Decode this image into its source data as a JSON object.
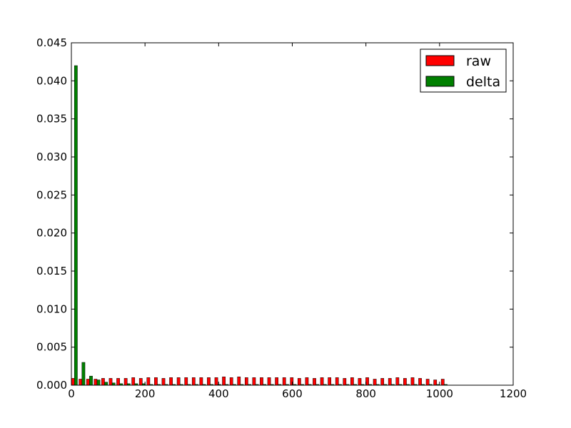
{
  "chart_data": {
    "type": "bar",
    "xlim": [
      0,
      1200
    ],
    "ylim": [
      0,
      0.045
    ],
    "bin_width": 20.5,
    "x_ticks": [
      "0",
      "200",
      "400",
      "600",
      "800",
      "1000",
      "1200"
    ],
    "y_ticks": [
      "0.000",
      "0.005",
      "0.010",
      "0.015",
      "0.020",
      "0.025",
      "0.030",
      "0.035",
      "0.040",
      "0.045"
    ],
    "legend_position": "top-right",
    "grid": false,
    "series": [
      {
        "name": "raw",
        "color": "#ff0000",
        "x": [
          0,
          20.5,
          41,
          61.5,
          82,
          102.5,
          123,
          143.5,
          164,
          184.5,
          205,
          225.5,
          246,
          266.5,
          287,
          307.5,
          328,
          348.5,
          369,
          389.5,
          410,
          430.5,
          451,
          471.5,
          492,
          512.5,
          533,
          553.5,
          574,
          594.5,
          615,
          635.5,
          656,
          676.5,
          697,
          717.5,
          738,
          758.5,
          779,
          799.5,
          820,
          840.5,
          861,
          881.5,
          902,
          922.5,
          943,
          963.5,
          984,
          1004.5
        ],
        "values": [
          0.0009,
          0.0008,
          0.0008,
          0.0008,
          0.0009,
          0.0009,
          0.0009,
          0.0009,
          0.001,
          0.0009,
          0.001,
          0.001,
          0.0009,
          0.001,
          0.001,
          0.001,
          0.001,
          0.001,
          0.001,
          0.001,
          0.0011,
          0.001,
          0.0011,
          0.001,
          0.001,
          0.001,
          0.001,
          0.001,
          0.001,
          0.001,
          0.0009,
          0.001,
          0.0009,
          0.001,
          0.001,
          0.001,
          0.0009,
          0.001,
          0.0009,
          0.001,
          0.0008,
          0.0009,
          0.0009,
          0.001,
          0.0009,
          0.001,
          0.0009,
          0.0008,
          0.0007,
          0.0008
        ]
      },
      {
        "name": "delta",
        "color": "#008000",
        "x": [
          0,
          20.5,
          41,
          61.5,
          82,
          102.5,
          123,
          143.5,
          164,
          184.5,
          205,
          225.5,
          246,
          266.5,
          287,
          307.5,
          328,
          348.5,
          369,
          389.5,
          410,
          430.5,
          451,
          471.5,
          492,
          512.5,
          533,
          553.5,
          574,
          594.5,
          615,
          635.5,
          656,
          676.5,
          697,
          717.5,
          738,
          758.5,
          779,
          799.5,
          820,
          840.5,
          861,
          881.5,
          902,
          922.5,
          943,
          963.5,
          984,
          1004.5
        ],
        "values": [
          0.042,
          0.003,
          0.0012,
          0.0007,
          0.0004,
          0.0003,
          0.0002,
          0.0002,
          0.0002,
          0.0002,
          0.0001,
          0.0001,
          0.0001,
          0.0001,
          0.0001,
          0.0001,
          0.0001,
          0.0001,
          0.0001,
          0.0001,
          0.0001,
          0.0001,
          0.0001,
          0.0001,
          0.0001,
          0.0001,
          0.0001,
          0.0001,
          0.0001,
          0.0001,
          0.0001,
          0.0001,
          0.0001,
          0.0001,
          0.0001,
          0.0001,
          0.0001,
          0.0001,
          0.0001,
          0.0001,
          0.0001,
          0.0001,
          0.0001,
          0.0001,
          0.0001,
          0.0001,
          0.0001,
          0.0001,
          0.0001,
          0.0001
        ]
      }
    ]
  }
}
